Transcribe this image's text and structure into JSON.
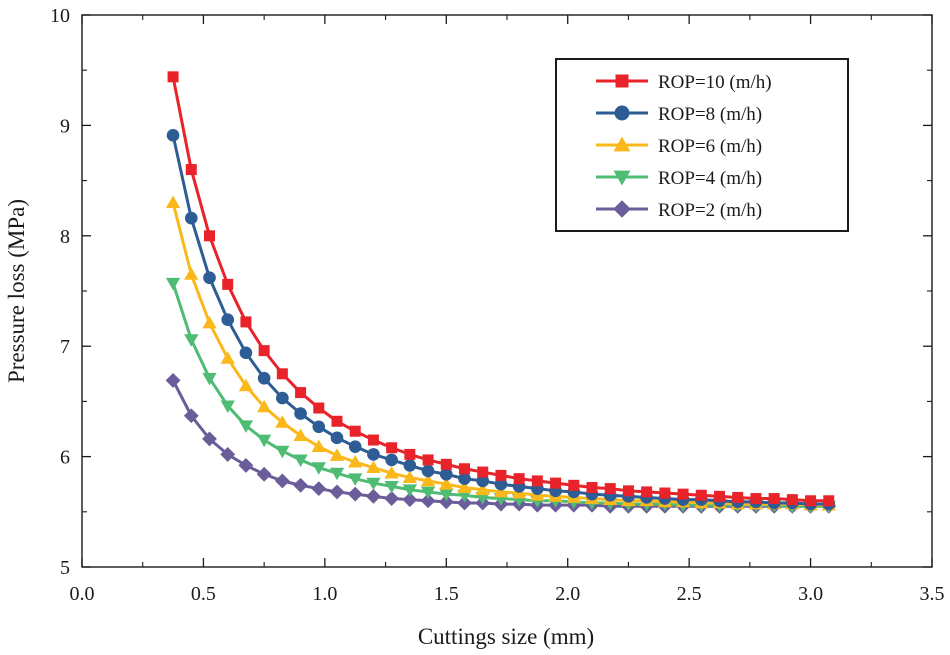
{
  "chart_data": {
    "type": "line",
    "title": "",
    "xlabel": "Cuttings size (mm)",
    "ylabel": "Pressure loss (MPa)",
    "xlim": [
      0.0,
      3.5
    ],
    "ylim": [
      5,
      10
    ],
    "x_ticks": [
      "0.0",
      "0.5",
      "1.0",
      "1.5",
      "2.0",
      "2.5",
      "3.0",
      "3.5"
    ],
    "y_ticks": [
      "5",
      "6",
      "7",
      "8",
      "9",
      "10"
    ],
    "grid": false,
    "legend_position": "top-right",
    "x": [
      0.375,
      0.45,
      0.525,
      0.6,
      0.675,
      0.75,
      0.825,
      0.9,
      0.975,
      1.05,
      1.125,
      1.2,
      1.275,
      1.35,
      1.425,
      1.5,
      1.575,
      1.65,
      1.725,
      1.8,
      1.875,
      1.95,
      2.025,
      2.1,
      2.175,
      2.25,
      2.325,
      2.4,
      2.475,
      2.55,
      2.625,
      2.7,
      2.775,
      2.85,
      2.925,
      3.0,
      3.075
    ],
    "series": [
      {
        "name": "ROP=10 (m/h)",
        "color": "#e8232a",
        "marker": "square",
        "values": [
          9.44,
          8.6,
          8.0,
          7.56,
          7.22,
          6.96,
          6.75,
          6.58,
          6.44,
          6.32,
          6.23,
          6.15,
          6.08,
          6.02,
          5.97,
          5.93,
          5.89,
          5.86,
          5.83,
          5.8,
          5.78,
          5.76,
          5.74,
          5.72,
          5.71,
          5.69,
          5.68,
          5.67,
          5.66,
          5.65,
          5.64,
          5.63,
          5.62,
          5.62,
          5.61,
          5.6,
          5.6
        ]
      },
      {
        "name": "ROP=8 (m/h)",
        "color": "#2e5c94",
        "marker": "circle",
        "values": [
          8.91,
          8.16,
          7.62,
          7.24,
          6.94,
          6.71,
          6.53,
          6.39,
          6.27,
          6.17,
          6.09,
          6.02,
          5.97,
          5.92,
          5.87,
          5.84,
          5.8,
          5.78,
          5.75,
          5.73,
          5.71,
          5.69,
          5.68,
          5.66,
          5.65,
          5.64,
          5.63,
          5.62,
          5.61,
          5.61,
          5.6,
          5.59,
          5.59,
          5.58,
          5.58,
          5.57,
          5.57
        ]
      },
      {
        "name": "ROP=6 (m/h)",
        "color": "#fbb81a",
        "marker": "triangle-up",
        "values": [
          8.3,
          7.65,
          7.21,
          6.89,
          6.64,
          6.45,
          6.31,
          6.19,
          6.09,
          6.01,
          5.95,
          5.9,
          5.85,
          5.81,
          5.78,
          5.75,
          5.72,
          5.7,
          5.68,
          5.67,
          5.65,
          5.64,
          5.63,
          5.62,
          5.61,
          5.6,
          5.6,
          5.59,
          5.59,
          5.58,
          5.58,
          5.57,
          5.57,
          5.57,
          5.57,
          5.56,
          5.56
        ]
      },
      {
        "name": "ROP=4 (m/h)",
        "color": "#4fbc74",
        "marker": "triangle-down",
        "values": [
          7.57,
          7.06,
          6.71,
          6.46,
          6.28,
          6.15,
          6.05,
          5.97,
          5.9,
          5.85,
          5.8,
          5.76,
          5.73,
          5.7,
          5.68,
          5.66,
          5.65,
          5.63,
          5.62,
          5.61,
          5.6,
          5.6,
          5.59,
          5.58,
          5.58,
          5.57,
          5.57,
          5.57,
          5.56,
          5.56,
          5.56,
          5.56,
          5.56,
          5.56,
          5.55,
          5.55,
          5.55
        ]
      },
      {
        "name": "ROP=2 (m/h)",
        "color": "#6b5d99",
        "marker": "diamond",
        "values": [
          6.69,
          6.37,
          6.16,
          6.02,
          5.92,
          5.84,
          5.78,
          5.74,
          5.71,
          5.68,
          5.66,
          5.64,
          5.62,
          5.61,
          5.6,
          5.59,
          5.58,
          5.58,
          5.57,
          5.57,
          5.56,
          5.56,
          5.56,
          5.56,
          5.55,
          5.55,
          5.55,
          5.55,
          5.55,
          5.55,
          5.55,
          5.55,
          5.55,
          5.55,
          5.55,
          5.55,
          5.55
        ]
      }
    ]
  }
}
